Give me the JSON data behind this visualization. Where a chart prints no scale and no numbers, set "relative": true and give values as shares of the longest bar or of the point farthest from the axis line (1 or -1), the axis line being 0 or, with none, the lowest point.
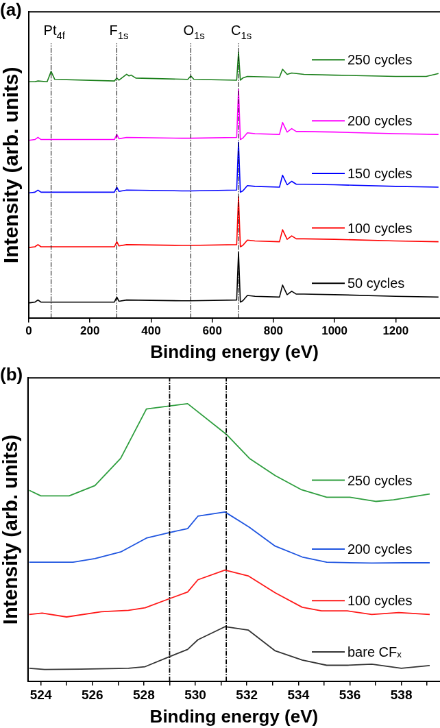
{
  "chart_data": [
    {
      "type": "line",
      "title": "(a)",
      "xlabel": "Binding energy (eV)",
      "ylabel": "Intensity (arb. units)",
      "relative": true,
      "xlim": [
        0,
        1345
      ],
      "xticks": [
        0,
        200,
        400,
        600,
        800,
        1000,
        1200
      ],
      "grid": false,
      "legend": "right",
      "marker": "none",
      "line_style": "solid",
      "x": [
        0,
        20,
        30,
        40,
        280,
        288,
        295,
        320,
        500,
        530,
        680,
        686,
        692,
        700,
        715,
        740,
        820,
        830,
        845,
        860,
        875,
        900,
        1000,
        1200,
        1340
      ],
      "ref_lines": [
        {
          "axis": "x",
          "value": 73,
          "label": "Pt$_{4f}$",
          "color": "#000000",
          "line_style": "dashed"
        },
        {
          "axis": "x",
          "value": 288,
          "label": "F$_{1s}$",
          "color": "#000000",
          "line_style": "dashed"
        },
        {
          "axis": "x",
          "value": 530,
          "label": "O$_{1s}$",
          "color": "#000000",
          "line_style": "dashed"
        },
        {
          "axis": "x",
          "value": 686,
          "label": "C$_{1s}$",
          "color": "#000000",
          "line_style": "dashed"
        }
      ],
      "series": [
        {
          "name": "250 cycles",
          "color": "#1a7f1a",
          "x": [
            0,
            20,
            30,
            60,
            73,
            85,
            280,
            288,
            295,
            320,
            328,
            335,
            350,
            520,
            530,
            540,
            680,
            686,
            692,
            700,
            715,
            820,
            830,
            845,
            860,
            900,
            1000,
            1200,
            1300,
            1340
          ],
          "values": [
            0.889,
            0.889,
            0.892,
            0.889,
            0.928,
            0.898,
            0.892,
            0.903,
            0.895,
            0.917,
            0.911,
            0.914,
            0.903,
            0.898,
            0.911,
            0.898,
            0.895,
            1,
            0.895,
            0.903,
            0.909,
            0.906,
            0.936,
            0.917,
            0.922,
            0.917,
            0.914,
            0.909,
            0.909,
            0.92
          ]
        },
        {
          "name": "200 cycles",
          "color": "#ff00ff",
          "values": [
            0.669,
            0.672,
            0.68,
            0.672,
            0.672,
            0.691,
            0.675,
            0.68,
            0.677,
            0.677,
            0.68,
            0.86,
            0.672,
            0.677,
            0.697,
            0.694,
            0.691,
            0.736,
            0.7,
            0.713,
            0.702,
            0.702,
            0.7,
            0.694,
            0.691
          ]
        },
        {
          "name": "150 cycles",
          "color": "#0000ff",
          "values": [
            0.471,
            0.474,
            0.482,
            0.474,
            0.474,
            0.493,
            0.477,
            0.482,
            0.479,
            0.479,
            0.482,
            0.662,
            0.474,
            0.479,
            0.499,
            0.496,
            0.493,
            0.538,
            0.502,
            0.515,
            0.504,
            0.504,
            0.502,
            0.496,
            0.493
          ]
        },
        {
          "name": "100 cycles",
          "color": "#ff0000",
          "values": [
            0.266,
            0.269,
            0.277,
            0.269,
            0.269,
            0.288,
            0.272,
            0.277,
            0.274,
            0.274,
            0.277,
            0.457,
            0.269,
            0.274,
            0.294,
            0.291,
            0.288,
            0.333,
            0.297,
            0.31,
            0.299,
            0.299,
            0.297,
            0.291,
            0.288
          ]
        },
        {
          "name": "50 cycles",
          "color": "#000000",
          "values": [
            0.058,
            0.061,
            0.069,
            0.061,
            0.061,
            0.08,
            0.064,
            0.069,
            0.066,
            0.066,
            0.069,
            0.249,
            0.061,
            0.066,
            0.086,
            0.083,
            0.08,
            0.125,
            0.089,
            0.102,
            0.091,
            0.091,
            0.089,
            0.083,
            0.08
          ]
        }
      ]
    },
    {
      "type": "line",
      "title": "(b)",
      "xlabel": "Binding energy (eV)",
      "ylabel": "Intensity (arb. units)",
      "relative": true,
      "xlim": [
        523.5,
        539.5
      ],
      "xticks": [
        524,
        {
          "value": 525,
          "label": null
        },
        526,
        {
          "value": 527,
          "label": null
        },
        528,
        {
          "value": 529,
          "label": null
        },
        530,
        {
          "value": 531,
          "label": null
        },
        532,
        {
          "value": 533,
          "label": null
        },
        534,
        {
          "value": 535,
          "label": null
        },
        536,
        {
          "value": 537,
          "label": null
        },
        538,
        {
          "value": 539,
          "label": null
        }
      ],
      "grid": false,
      "legend": "right",
      "marker": "none",
      "line_style": "solid",
      "ref_lines": [
        {
          "axis": "x",
          "value": 529.0,
          "color": "#000000",
          "line_style": "dashed"
        },
        {
          "axis": "x",
          "value": 531.2,
          "color": "#000000",
          "line_style": "dashed"
        }
      ],
      "series": [
        {
          "name": "250 cycles",
          "color": "#2e9e3e",
          "x": [
            523.55,
            524.0,
            525.1,
            526.1,
            527.1,
            528.1,
            529.7,
            531.2,
            532.1,
            533.1,
            534.1,
            535.1,
            536.0,
            537.0,
            537.7,
            539.1
          ],
          "values": [
            0.688,
            0.668,
            0.668,
            0.705,
            0.803,
            0.981,
            1,
            0.89,
            0.803,
            0.741,
            0.691,
            0.663,
            0.663,
            0.648,
            0.654,
            0.675
          ]
        },
        {
          "name": "200 cycles",
          "color": "#1f55e0",
          "x": [
            523.55,
            525.25,
            526.1,
            527.1,
            528.1,
            529.0,
            529.7,
            530.1,
            531.15,
            532.1,
            533.1,
            534.15,
            535.1,
            536.85,
            538.1,
            539.1
          ],
          "values": [
            0.429,
            0.429,
            0.442,
            0.466,
            0.516,
            0.536,
            0.55,
            0.595,
            0.61,
            0.555,
            0.487,
            0.448,
            0.429,
            0.426,
            0.427,
            0.427
          ]
        },
        {
          "name": "100 cycles",
          "color": "#ff1a1a",
          "x": [
            523.55,
            524.05,
            525.0,
            526.35,
            527.4,
            528.05,
            529.0,
            529.7,
            530.1,
            531.15,
            532.05,
            533.1,
            534.15,
            534.9,
            535.9,
            536.85,
            537.9,
            539.1
          ],
          "values": [
            0.241,
            0.246,
            0.232,
            0.251,
            0.256,
            0.265,
            0.298,
            0.322,
            0.366,
            0.401,
            0.38,
            0.319,
            0.267,
            0.254,
            0.254,
            0.241,
            0.248,
            0.241
          ]
        },
        {
          "name": "bare CFₓ",
          "color": "#333333",
          "x": [
            523.55,
            524.15,
            525.55,
            527.4,
            528.05,
            529.0,
            529.7,
            530.1,
            531.15,
            532.05,
            533.1,
            534.15,
            535.1,
            535.9,
            536.85,
            538.0,
            539.1
          ],
          "values": [
            0.047,
            0.043,
            0.044,
            0.047,
            0.053,
            0.089,
            0.115,
            0.15,
            0.197,
            0.185,
            0.11,
            0.077,
            0.058,
            0.058,
            0.062,
            0.047,
            0.057
          ]
        }
      ]
    }
  ]
}
